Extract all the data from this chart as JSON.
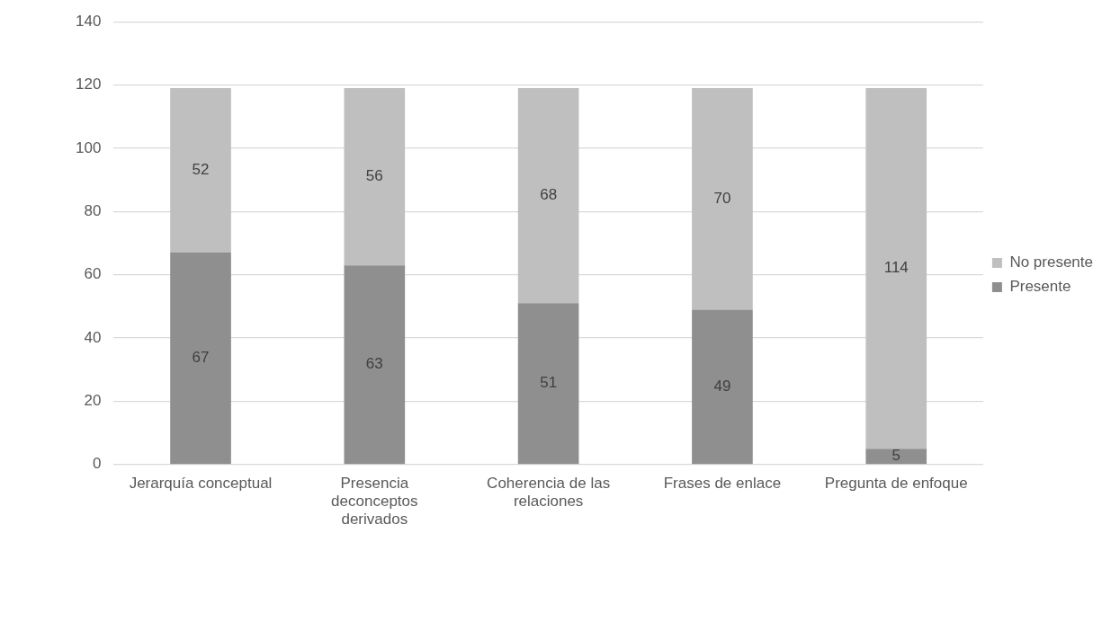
{
  "chart_data": {
    "type": "bar",
    "stacked": true,
    "categories": [
      "Jerarquía conceptual",
      "Presencia deconceptos derivados",
      "Coherencia de las relaciones",
      "Frases de enlace",
      "Pregunta de enfoque"
    ],
    "series": [
      {
        "name": "Presente",
        "color": "#8f8f8f",
        "values": [
          67,
          63,
          51,
          49,
          5
        ]
      },
      {
        "name": "No presente",
        "color": "#bfbfbf",
        "values": [
          52,
          56,
          68,
          70,
          114
        ]
      }
    ],
    "ylim": [
      0,
      140
    ],
    "yticks": [
      0,
      20,
      40,
      60,
      80,
      100,
      120,
      140
    ],
    "grid": "y",
    "legend": "right",
    "data_labels": true
  }
}
